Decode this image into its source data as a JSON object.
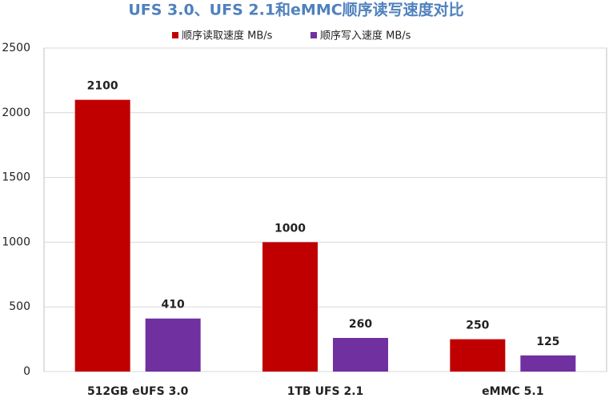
{
  "chart_data": {
    "type": "bar",
    "title": "UFS 3.0、UFS 2.1和eMMC顺序读写速度对比",
    "categories": [
      "512GB eUFS 3.0",
      "1TB UFS 2.1",
      "eMMC 5.1"
    ],
    "series": [
      {
        "name": "顺序读取速度 MB/s",
        "color": "#c00000",
        "values": [
          2100,
          1000,
          250
        ]
      },
      {
        "name": "顺序写入速度 MB/s",
        "color": "#7030a0",
        "values": [
          410,
          260,
          125
        ]
      }
    ],
    "ylim": [
      0,
      2500
    ],
    "yticks": [
      0,
      500,
      1000,
      1500,
      2000,
      2500
    ],
    "grid": true,
    "legend": "top"
  }
}
